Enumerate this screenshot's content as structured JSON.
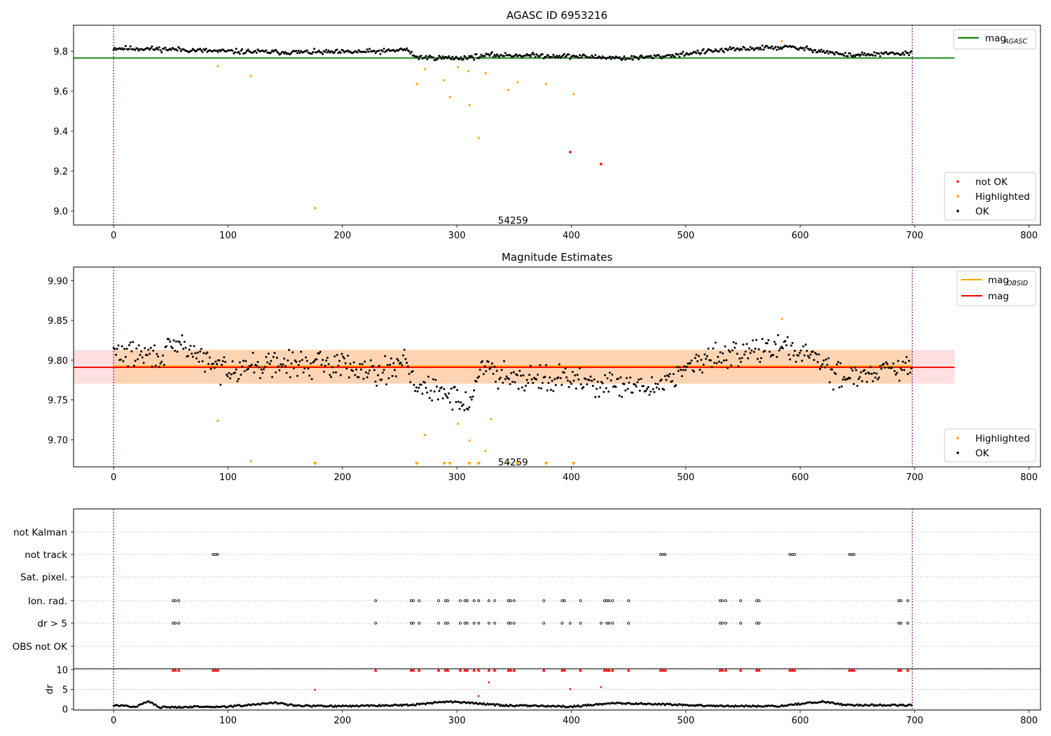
{
  "chart_data": [
    {
      "id": "top",
      "type": "scatter",
      "title": "AGASC ID 6953216",
      "xlim": [
        -35,
        810
      ],
      "ylim": [
        8.93,
        9.93
      ],
      "xticks": [
        0,
        100,
        200,
        300,
        400,
        500,
        600,
        700,
        800
      ],
      "yticks": [
        "9.0",
        "9.2",
        "9.4",
        "9.6",
        "9.8"
      ],
      "ytick_values": [
        9.0,
        9.2,
        9.4,
        9.6,
        9.8
      ],
      "vlines": [
        0,
        698
      ],
      "hline": {
        "name": "mag_AGASC",
        "y": 9.766,
        "xmin": -35,
        "xmax": 735,
        "color": "#008000"
      },
      "obsid_label": {
        "text": "54259",
        "x": 349,
        "y": 8.955
      },
      "legend_lines": [
        {
          "label": "mag",
          "sub": "AGASC",
          "color": "#008000"
        }
      ],
      "legend_points": [
        {
          "label": "not OK",
          "color": "#ff0000"
        },
        {
          "label": "Highlighted",
          "color": "#ffa500"
        },
        {
          "label": "OK",
          "color": "#000000"
        }
      ],
      "ok_trend": [
        [
          0,
          9.815
        ],
        [
          50,
          9.81
        ],
        [
          90,
          9.8
        ],
        [
          150,
          9.795
        ],
        [
          200,
          9.795
        ],
        [
          240,
          9.8
        ],
        [
          255,
          9.81
        ],
        [
          265,
          9.77
        ],
        [
          300,
          9.765
        ],
        [
          330,
          9.78
        ],
        [
          350,
          9.78
        ],
        [
          400,
          9.775
        ],
        [
          450,
          9.765
        ],
        [
          480,
          9.775
        ],
        [
          520,
          9.8
        ],
        [
          560,
          9.815
        ],
        [
          590,
          9.82
        ],
        [
          615,
          9.805
        ],
        [
          640,
          9.78
        ],
        [
          700,
          9.79
        ]
      ],
      "ok_noise": 0.012,
      "highlighted": [
        [
          91,
          9.725
        ],
        [
          120,
          9.675
        ],
        [
          176,
          9.015
        ],
        [
          265,
          9.635
        ],
        [
          272,
          9.71
        ],
        [
          289,
          9.655
        ],
        [
          294,
          9.57
        ],
        [
          301,
          9.72
        ],
        [
          310,
          9.7
        ],
        [
          311,
          9.53
        ],
        [
          319,
          9.365
        ],
        [
          325,
          9.69
        ],
        [
          345,
          9.605
        ],
        [
          353,
          9.645
        ],
        [
          378,
          9.635
        ],
        [
          402,
          9.585
        ],
        [
          584,
          9.85
        ]
      ],
      "not_ok": [
        [
          399,
          9.295
        ],
        [
          426,
          9.235
        ]
      ]
    },
    {
      "id": "mid",
      "type": "scatter",
      "title": "Magnitude Estimates",
      "xlim": [
        -35,
        810
      ],
      "ylim": [
        9.666,
        9.917
      ],
      "xticks": [
        0,
        100,
        200,
        300,
        400,
        500,
        600,
        700,
        800
      ],
      "yticks": [
        "9.70",
        "9.75",
        "9.80",
        "9.85",
        "9.90"
      ],
      "ytick_values": [
        9.7,
        9.75,
        9.8,
        9.85,
        9.9
      ],
      "vlines": [
        0,
        698
      ],
      "band_mag": {
        "lo": 9.7705,
        "hi": 9.813,
        "xmin": -35,
        "xmax": 735
      },
      "band_obsid": {
        "lo": 9.7705,
        "hi": 9.813,
        "xmin": 0,
        "xmax": 698
      },
      "mag_obsid": {
        "y": 9.7925,
        "xmin": 0,
        "xmax": 698
      },
      "mag": {
        "y": 9.791,
        "xmin": -35,
        "xmax": 735
      },
      "obsid_label": {
        "text": "54259",
        "x": 349,
        "y": 9.672
      },
      "legend_lines": [
        {
          "label": "mag",
          "sub": "OBSID",
          "color": "#ffa500"
        },
        {
          "label": "mag",
          "sub": "",
          "color": "#ff0000"
        }
      ],
      "legend_points": [
        {
          "label": "Highlighted",
          "color": "#ffa500"
        },
        {
          "label": "OK",
          "color": "#000000"
        }
      ],
      "ok_trend": [
        [
          0,
          9.81
        ],
        [
          40,
          9.805
        ],
        [
          60,
          9.82
        ],
        [
          90,
          9.79
        ],
        [
          150,
          9.795
        ],
        [
          200,
          9.795
        ],
        [
          240,
          9.785
        ],
        [
          255,
          9.805
        ],
        [
          265,
          9.765
        ],
        [
          300,
          9.755
        ],
        [
          310,
          9.74
        ],
        [
          320,
          9.79
        ],
        [
          350,
          9.78
        ],
        [
          400,
          9.775
        ],
        [
          450,
          9.765
        ],
        [
          470,
          9.765
        ],
        [
          500,
          9.79
        ],
        [
          540,
          9.81
        ],
        [
          580,
          9.815
        ],
        [
          610,
          9.81
        ],
        [
          630,
          9.78
        ],
        [
          700,
          9.79
        ]
      ],
      "ok_noise": 0.016,
      "highlighted": [
        [
          91,
          9.724
        ],
        [
          120,
          9.673
        ],
        [
          272,
          9.706
        ],
        [
          301,
          9.72
        ],
        [
          311,
          9.699
        ],
        [
          325,
          9.686
        ],
        [
          330,
          9.726
        ],
        [
          584,
          9.852
        ]
      ],
      "triangles": [
        176,
        265,
        289,
        294,
        311,
        319,
        345,
        353,
        378,
        402
      ]
    },
    {
      "id": "flags",
      "type": "scatter",
      "xlim": [
        -35,
        810
      ],
      "vlines": [
        0,
        698
      ],
      "rows": [
        "not Kalman",
        "not track",
        "Sat. pixel.",
        "Ion. rad.",
        "dr > 5",
        "OBS not OK"
      ],
      "not_track": [
        87,
        89,
        91,
        478,
        480,
        482,
        591,
        593,
        595,
        643,
        645,
        647
      ],
      "ion_rad": [
        52,
        54,
        57,
        229,
        260,
        262,
        267,
        284,
        290,
        292,
        303,
        307,
        309,
        315,
        319,
        328,
        333,
        345,
        347,
        350,
        376,
        392,
        394,
        408,
        429,
        431,
        433,
        436,
        450,
        530,
        532,
        535,
        548,
        562,
        564,
        686,
        688,
        694
      ],
      "dr_gt_5": [
        52,
        54,
        57,
        229,
        260,
        262,
        267,
        284,
        290,
        292,
        303,
        307,
        309,
        315,
        319,
        328,
        333,
        345,
        347,
        350,
        376,
        392,
        399,
        408,
        426,
        431,
        433,
        436,
        450,
        530,
        532,
        535,
        548,
        562,
        564,
        686,
        688,
        694
      ]
    },
    {
      "id": "dr",
      "type": "scatter",
      "ylabel": "dr",
      "xlim": [
        -35,
        810
      ],
      "ylim": [
        -0.3,
        10.3
      ],
      "xticks": [
        0,
        100,
        200,
        300,
        400,
        500,
        600,
        700,
        800
      ],
      "yticks": [
        "0",
        "5",
        "10"
      ],
      "ytick_values": [
        0,
        5,
        10
      ],
      "vlines": [
        0,
        698
      ],
      "dr_red_at_10": [
        52,
        54,
        57,
        87,
        89,
        91,
        229,
        260,
        262,
        267,
        284,
        290,
        292,
        303,
        307,
        309,
        315,
        319,
        328,
        333,
        345,
        347,
        350,
        376,
        392,
        394,
        408,
        429,
        431,
        433,
        436,
        450,
        478,
        480,
        482,
        530,
        532,
        535,
        548,
        562,
        564,
        591,
        593,
        595,
        643,
        645,
        647,
        686,
        688,
        694
      ],
      "dr_red_mid": [
        [
          176,
          4.9
        ],
        [
          319,
          3.3
        ],
        [
          328,
          6.8
        ],
        [
          399,
          5.1
        ],
        [
          426,
          5.6
        ]
      ],
      "dr_trend": [
        [
          0,
          0.9
        ],
        [
          20,
          0.6
        ],
        [
          30,
          2.0
        ],
        [
          40,
          0.4
        ],
        [
          80,
          0.6
        ],
        [
          100,
          0.6
        ],
        [
          120,
          1.0
        ],
        [
          140,
          1.6
        ],
        [
          160,
          0.8
        ],
        [
          200,
          0.7
        ],
        [
          260,
          1.0
        ],
        [
          280,
          1.6
        ],
        [
          300,
          1.8
        ],
        [
          340,
          0.9
        ],
        [
          400,
          0.6
        ],
        [
          440,
          1.5
        ],
        [
          480,
          1.2
        ],
        [
          530,
          0.7
        ],
        [
          580,
          0.7
        ],
        [
          620,
          1.9
        ],
        [
          640,
          1.0
        ],
        [
          700,
          0.9
        ]
      ]
    }
  ]
}
